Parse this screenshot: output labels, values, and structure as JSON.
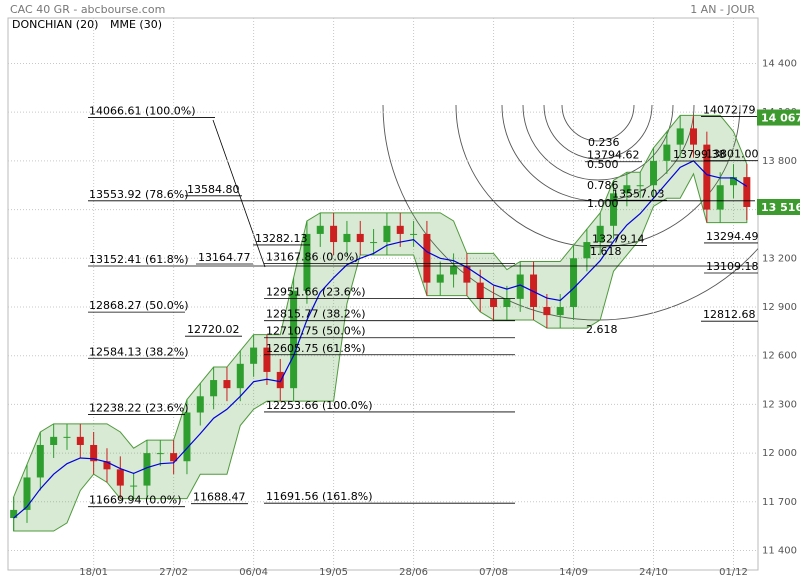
{
  "chart_data": {
    "type": "candlestick",
    "title": "CAC 40 GR - abcbourse.com",
    "subtitle": "1 AN - JOUR",
    "categories": [
      null,
      null,
      null,
      null,
      null,
      null,
      "18/01",
      null,
      null,
      null,
      null,
      null,
      "27/02",
      null,
      null,
      null,
      null,
      null,
      "06/04",
      null,
      null,
      null,
      null,
      null,
      "19/05",
      null,
      null,
      null,
      null,
      null,
      "28/06",
      null,
      null,
      null,
      null,
      null,
      "07/08",
      null,
      null,
      null,
      null,
      null,
      "14/09",
      null,
      null,
      null,
      null,
      null,
      "24/10",
      null,
      null,
      null,
      null,
      null,
      "01/12",
      null
    ],
    "ohlc": {
      "open": [
        11600,
        11650,
        11850,
        12050,
        12100,
        12100,
        12050,
        11950,
        11900,
        11800,
        11800,
        12000,
        12000,
        11950,
        12250,
        12350,
        12450,
        12400,
        12550,
        12650,
        12500,
        12400,
        13000,
        13350,
        13400,
        13300,
        13350,
        13300,
        13300,
        13400,
        13350,
        13350,
        13050,
        13100,
        13150,
        13050,
        12950,
        12900,
        12950,
        13100,
        12900,
        12850,
        12900,
        13200,
        13300,
        13400,
        13600,
        13650,
        13650,
        13800,
        13900,
        14000,
        13900,
        13500,
        13650,
        13700
      ],
      "high": [
        11730,
        11930,
        12130,
        12180,
        12180,
        12180,
        12130,
        12030,
        11980,
        11880,
        12080,
        12080,
        12080,
        12330,
        12430,
        12530,
        12530,
        12630,
        12730,
        12730,
        12580,
        13080,
        13430,
        13480,
        13480,
        13430,
        13430,
        13380,
        13480,
        13480,
        13430,
        13430,
        13180,
        13230,
        13230,
        13130,
        13030,
        13030,
        13180,
        13180,
        12980,
        12980,
        13280,
        13380,
        13480,
        13680,
        13730,
        13730,
        13880,
        13980,
        14080,
        14080,
        13980,
        13730,
        13780,
        13780
      ],
      "low": [
        11520,
        11570,
        11770,
        11970,
        12020,
        11970,
        11870,
        11820,
        11720,
        11720,
        11720,
        11920,
        11870,
        11870,
        12170,
        12270,
        12320,
        12320,
        12470,
        12420,
        12320,
        12320,
        12920,
        13270,
        13220,
        13220,
        13220,
        13220,
        13220,
        13270,
        13270,
        12970,
        12970,
        13020,
        12970,
        12870,
        12820,
        12820,
        12870,
        12820,
        12770,
        12770,
        12820,
        13120,
        13220,
        13320,
        13520,
        13570,
        13570,
        13720,
        13820,
        13820,
        13420,
        13420,
        13570,
        13436
      ],
      "close": [
        11650,
        11850,
        12050,
        12100,
        12100,
        12050,
        11950,
        11900,
        11800,
        11800,
        12000,
        12000,
        11950,
        12250,
        12350,
        12450,
        12400,
        12550,
        12650,
        12500,
        12400,
        13000,
        13350,
        13400,
        13300,
        13350,
        13300,
        13300,
        13400,
        13350,
        13350,
        13050,
        13100,
        13150,
        13050,
        12950,
        12900,
        12950,
        13100,
        12900,
        12850,
        12900,
        13200,
        13300,
        13400,
        13600,
        13650,
        13650,
        13800,
        13900,
        14000,
        13900,
        13500,
        13650,
        13700,
        13516
      ]
    },
    "up_color": "#2e9e2e",
    "down_color": "#cc2020",
    "series": [
      {
        "name": "DONCHIAN (20)",
        "color": "#4f9a3c",
        "upper": [
          11730,
          11930,
          12130,
          12180,
          12180,
          12180,
          12180,
          12180,
          12130,
          12030,
          12080,
          12080,
          12080,
          12330,
          12430,
          12530,
          12530,
          12630,
          12730,
          12730,
          12730,
          13080,
          13430,
          13480,
          13480,
          13480,
          13480,
          13480,
          13480,
          13480,
          13480,
          13480,
          13480,
          13430,
          13230,
          13230,
          13230,
          13130,
          13180,
          13180,
          13180,
          13180,
          13280,
          13380,
          13480,
          13680,
          13730,
          13730,
          13880,
          13980,
          14080,
          14080,
          14080,
          14080,
          13980,
          13780
        ],
        "lower": [
          11520,
          11520,
          11520,
          11520,
          11570,
          11770,
          11870,
          11820,
          11720,
          11720,
          11720,
          11720,
          11720,
          11720,
          11870,
          11870,
          11870,
          12170,
          12270,
          12320,
          12320,
          12320,
          12320,
          12320,
          12320,
          12920,
          13220,
          13220,
          13220,
          13220,
          13220,
          12970,
          12970,
          12970,
          12970,
          12870,
          12820,
          12820,
          12820,
          12820,
          12770,
          12770,
          12770,
          12770,
          12820,
          13120,
          13220,
          13320,
          13520,
          13570,
          13570,
          13720,
          13420,
          13420,
          13420,
          13420
        ]
      },
      {
        "name": "MME (30)",
        "color": "#0000dd",
        "values": [
          11600,
          11670,
          11780,
          11870,
          11935,
          11970,
          11965,
          11945,
          11905,
          11875,
          11910,
          11935,
          11940,
          12030,
          12120,
          12215,
          12270,
          12350,
          12440,
          12455,
          12440,
          12600,
          12820,
          12990,
          13080,
          13160,
          13200,
          13230,
          13280,
          13300,
          13315,
          13240,
          13200,
          13185,
          13145,
          13090,
          13035,
          13010,
          13035,
          12995,
          12955,
          12940,
          13015,
          13100,
          13185,
          13305,
          13405,
          13475,
          13570,
          13665,
          13760,
          13800,
          13715,
          13695,
          13695,
          13643
        ]
      }
    ],
    "ylim": [
      11280,
      14680
    ],
    "yticks": [
      {
        "value": 14400,
        "label": "14 400"
      },
      {
        "value": 14100,
        "label": "14 100"
      },
      {
        "value": 13800,
        "label": "13 800"
      },
      {
        "value": 13500,
        "label": "13 500"
      },
      {
        "value": 13200,
        "label": "13 200"
      },
      {
        "value": 12900,
        "label": "12 900"
      },
      {
        "value": 12600,
        "label": "12 600"
      },
      {
        "value": 12300,
        "label": "12 300"
      },
      {
        "value": 12000,
        "label": "12 000"
      },
      {
        "value": 11700,
        "label": "11 700"
      },
      {
        "value": 11400,
        "label": "11 400"
      }
    ],
    "grid": true,
    "price_tags": [
      {
        "value": 14067,
        "label": "14 067"
      },
      {
        "value": 13516,
        "label": "13 516"
      }
    ],
    "fib_left": [
      {
        "value": 14066.61,
        "label": "14066.61  (100.0%)"
      },
      {
        "value": 13553.92,
        "label": "13553.92  (78.6%)"
      },
      {
        "value": 13152.41,
        "label": "13152.41  (61.8%)"
      },
      {
        "value": 12868.27,
        "label": "12868.27  (50.0%)"
      },
      {
        "value": 12584.13,
        "label": "12584.13  (38.2%)"
      },
      {
        "value": 12238.22,
        "label": "12238.22  (23.6%)"
      },
      {
        "value": 11669.94,
        "label": "11669.94  (0.0%)"
      }
    ],
    "fib_mid": [
      {
        "value": 13167.86,
        "label": "13167.86  (0.0%)"
      },
      {
        "value": 12951.66,
        "label": "12951.66  (23.6%)"
      },
      {
        "value": 12815.77,
        "label": "12815.77  (38.2%)"
      },
      {
        "value": 12710.75,
        "label": "12710.75  (50.0%)"
      },
      {
        "value": 12605.75,
        "label": "12605.75  (61.8%)"
      },
      {
        "value": 12253.66,
        "label": "12253.66  (100.0%)"
      },
      {
        "value": 11691.56,
        "label": "11691.56  (161.8%)"
      }
    ],
    "levels": [
      13584.8,
      13164.77,
      12720.02,
      11688.47,
      13282.13,
      13279.14,
      13294.49,
      13109.18,
      12812.68,
      14072.79,
      13794.62,
      13799.38,
      13801.0,
      13557.03
    ],
    "level_labels": [
      "13584.80",
      "13164.77",
      "12720.02",
      "11688.47",
      "13282.13",
      "13279.14",
      "13294.49",
      "13109.18",
      "12812.68",
      "14072.79",
      "13794.62",
      "13799.38",
      "13801.00",
      "13557.03"
    ],
    "fan_labels": [
      "0.236",
      "0.500",
      "0.786",
      "1.000",
      "1.618",
      "2.618"
    ]
  }
}
